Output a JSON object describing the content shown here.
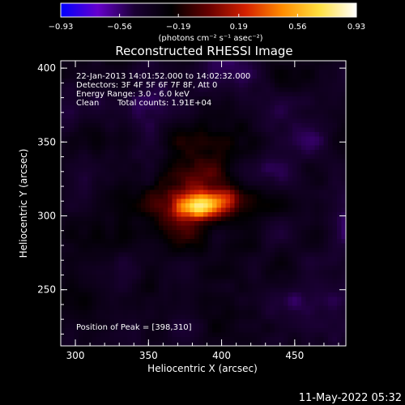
{
  "chart_data": {
    "type": "heatmap",
    "title": "Reconstructed RHESSI Image",
    "xlabel": "Heliocentric X (arcsec)",
    "ylabel": "Heliocentric Y (arcsec)",
    "xlim": [
      290,
      485
    ],
    "ylim": [
      212,
      405
    ],
    "x_ticks": [
      "300",
      "350",
      "400",
      "450"
    ],
    "y_ticks": [
      "250",
      "300",
      "350",
      "400"
    ],
    "colorbar": {
      "ticks": [
        "-0.93",
        "-0.56",
        "-0.19",
        "0.19",
        "0.56",
        "0.93"
      ],
      "range": [
        -0.93,
        0.93
      ],
      "unit_label": "(photons cm⁻² s⁻¹ asec⁻²)",
      "colors": [
        "#0000ff",
        "#6600cc",
        "#1a0033",
        "#000000",
        "#660000",
        "#d42000",
        "#ff8c00",
        "#ffe040",
        "#ffffff"
      ]
    },
    "annotations": {
      "time_range": "22-Jan-2013 14:01:52.000 to 14:02:32.000",
      "detectors": "Detectors: 3F 4F 5F 6F 7F 8F, Att 0",
      "energy_range": "Energy Range: 3.0 - 6.0 keV",
      "method": "Clean",
      "total_counts": "Total counts: 1.91E+04",
      "peak": "Position of Peak = [398,310]"
    },
    "peak": [
      398,
      310
    ],
    "sources": [
      {
        "x": 383,
        "y": 306,
        "amp": 0.8
      },
      {
        "x": 398,
        "y": 310,
        "amp": 0.42
      }
    ],
    "halo": {
      "x": 383,
      "y": 315,
      "amp": 0.35
    }
  },
  "footer": {
    "timestamp": "11-May-2022 05:32"
  }
}
